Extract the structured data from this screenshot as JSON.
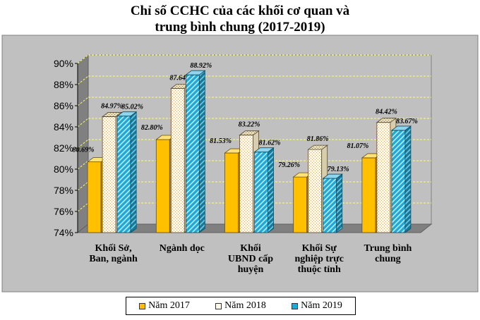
{
  "chart_data": {
    "type": "bar",
    "title_lines": [
      "Chỉ số CCHC của các khối cơ quan và",
      "trung bình chung (2017-2019)"
    ],
    "categories": [
      [
        "Khối Sở,",
        "Ban, ngành"
      ],
      [
        "Ngành dọc"
      ],
      [
        "Khối",
        "UBND cấp",
        "huyện"
      ],
      [
        "Khối Sự",
        "nghiệp trực",
        "thuộc tỉnh"
      ],
      [
        "Trung bình",
        "chung"
      ]
    ],
    "series": [
      {
        "name": "Năm 2017",
        "values": [
          80.69,
          82.8,
          81.53,
          79.26,
          81.07
        ],
        "labels": [
          "80.69%",
          "82.80%",
          "81.53%",
          "79.26%",
          "81.07%"
        ],
        "color": "#FFC000"
      },
      {
        "name": "Năm 2018",
        "values": [
          84.97,
          87.64,
          83.22,
          81.86,
          84.42
        ],
        "labels": [
          "84.97%",
          "87.64%",
          "83.22%",
          "81.86%",
          "84.42%"
        ],
        "color": "#FDF6E8"
      },
      {
        "name": "Năm 2019",
        "values": [
          85.02,
          88.92,
          81.62,
          79.13,
          83.67
        ],
        "labels": [
          "85.02%",
          "88.92%",
          "81.62%",
          "79.13%",
          "83.67%"
        ],
        "color": "#1FA9D6"
      }
    ],
    "ylim": [
      74,
      90
    ],
    "yticks": [
      "74%",
      "76%",
      "78%",
      "80%",
      "82%",
      "84%",
      "86%",
      "88%",
      "90%"
    ],
    "grid": true,
    "legend_position": "bottom",
    "style": "3d-clustered"
  }
}
